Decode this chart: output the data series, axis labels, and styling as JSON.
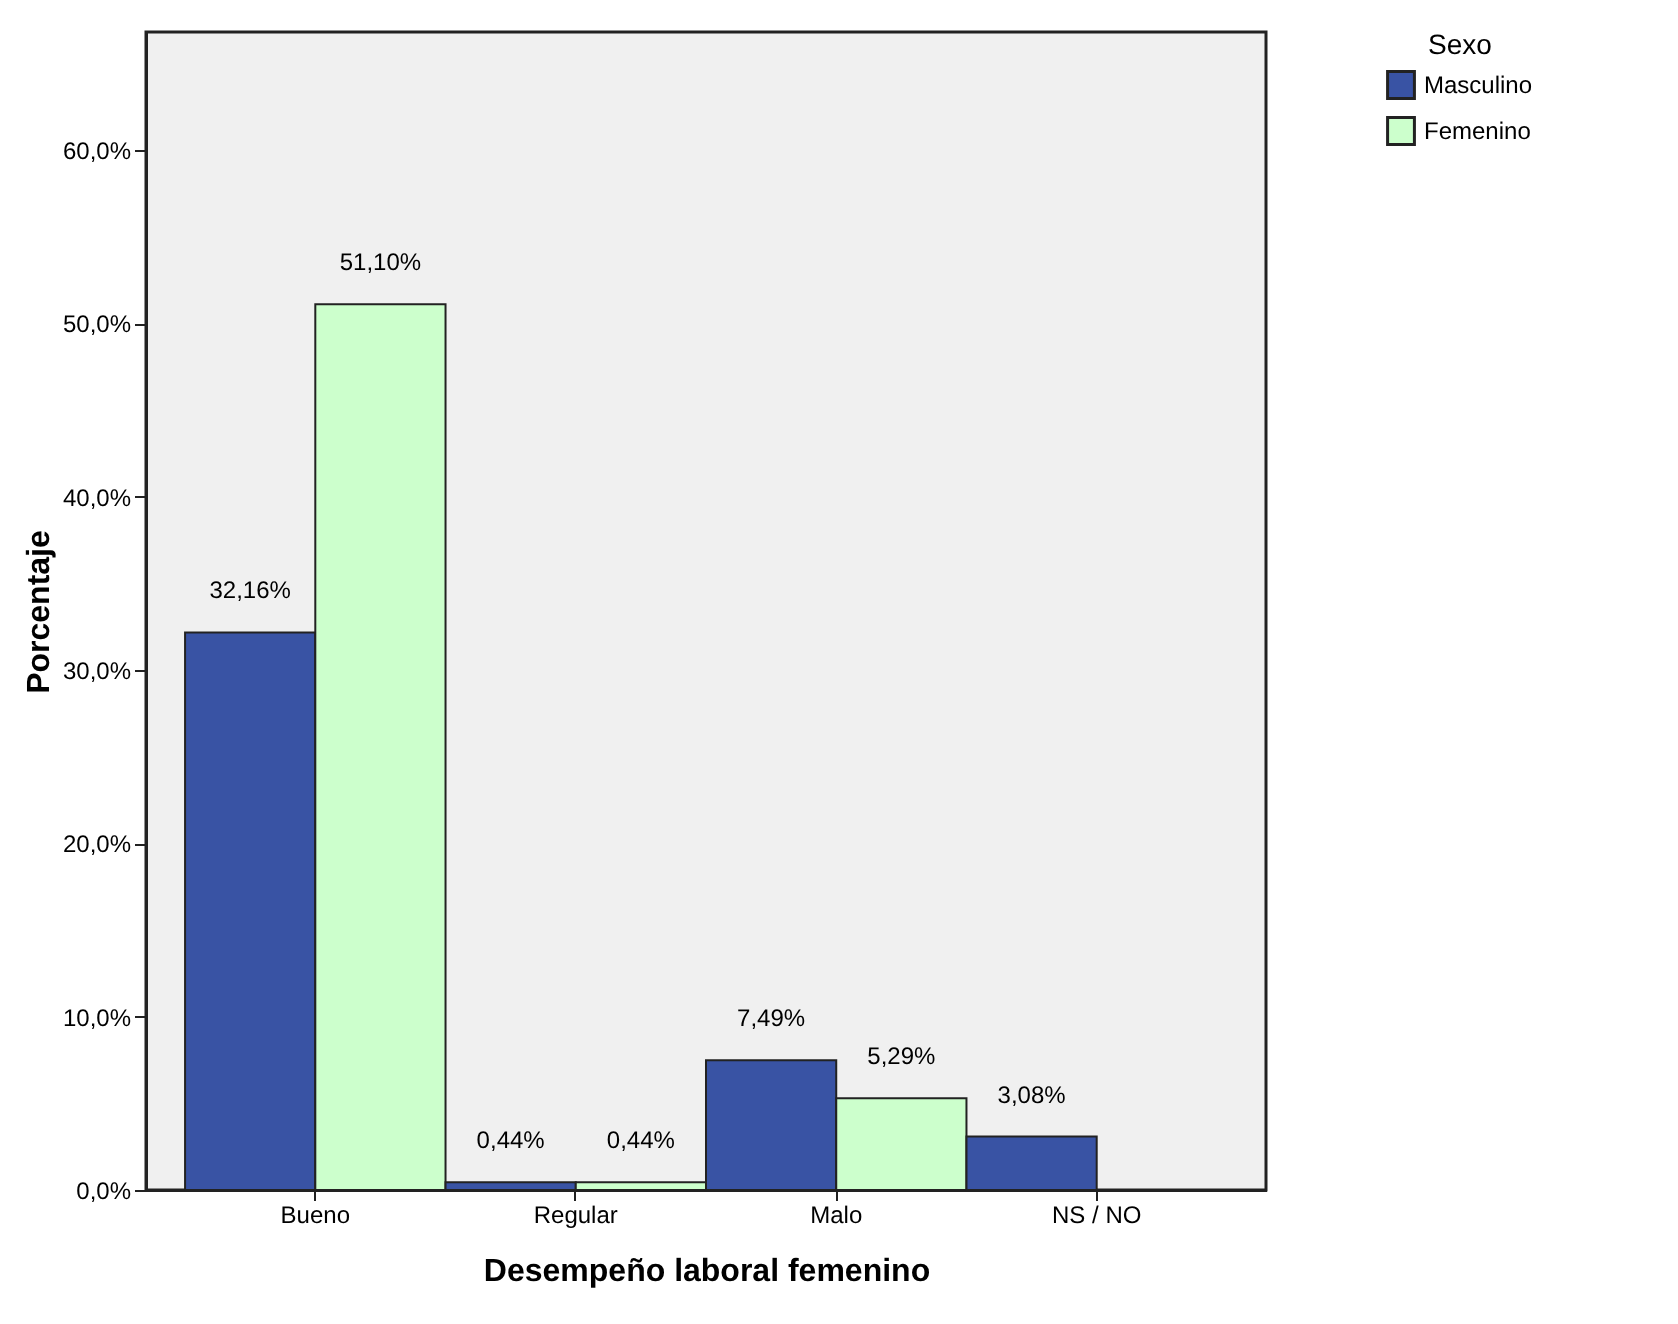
{
  "chart_data": {
    "type": "bar",
    "xlabel": "Desempeño laboral femenino",
    "ylabel": "Porcentaje",
    "legend_title": "Sexo",
    "legend": "top right",
    "categories": [
      "Bueno",
      "Regular",
      "Malo",
      "NS / NO"
    ],
    "series": [
      {
        "name": "Masculino",
        "color": "#3953a4",
        "values": [
          32.16,
          0.44,
          7.49,
          3.08
        ],
        "value_labels": [
          "32,16%",
          "0,44%",
          "7,49%",
          "3,08%"
        ]
      },
      {
        "name": "Femenino",
        "color": "#ccffcc",
        "values": [
          51.1,
          0.44,
          5.29,
          null
        ],
        "value_labels": [
          "51,10%",
          "0,44%",
          "5,29%",
          null
        ]
      }
    ],
    "ylim": [
      0,
      66.8
    ],
    "yticks": [
      {
        "value": 0,
        "label": "0,0%"
      },
      {
        "value": 10,
        "label": "10,0%"
      },
      {
        "value": 20,
        "label": "20,0%"
      },
      {
        "value": 30,
        "label": "30,0%"
      },
      {
        "value": 40,
        "label": "40,0%"
      },
      {
        "value": 50,
        "label": "50,0%"
      },
      {
        "value": 60,
        "label": "60,0%"
      }
    ],
    "grid": false
  }
}
